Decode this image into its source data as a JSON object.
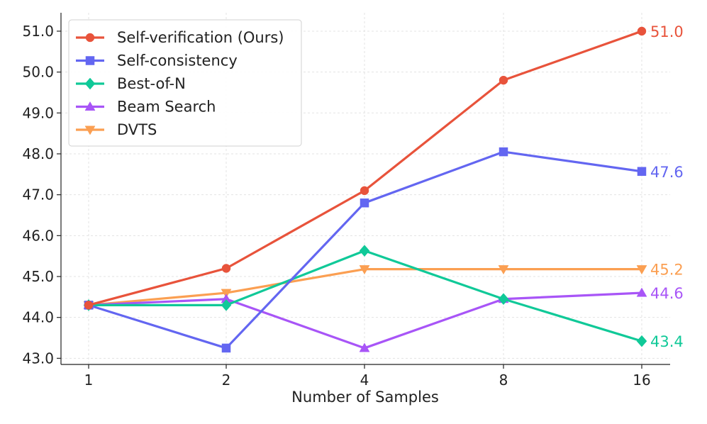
{
  "chart_data": {
    "type": "line",
    "title": "",
    "xlabel": "Number of Samples",
    "ylabel": "",
    "categories": [
      "1",
      "2",
      "4",
      "8",
      "16"
    ],
    "ylim": [
      42.85,
      51.45
    ],
    "yticks": [
      "43.0",
      "44.0",
      "45.0",
      "46.0",
      "47.0",
      "48.0",
      "49.0",
      "50.0",
      "51.0"
    ],
    "ytick_values": [
      43,
      44,
      45,
      46,
      47,
      48,
      49,
      50,
      51
    ],
    "grid": true,
    "legend_position": "top-left",
    "series": [
      {
        "name": "Self-verification (Ours)",
        "color": "#e8533b",
        "marker": "circle",
        "values": [
          44.3,
          45.2,
          47.1,
          49.8,
          51.0
        ],
        "end_label": "51.0"
      },
      {
        "name": "Self-consistency",
        "color": "#6366f1",
        "marker": "square",
        "values": [
          44.3,
          43.25,
          46.8,
          48.05,
          47.57
        ],
        "end_label": "47.6"
      },
      {
        "name": "Best-of-N",
        "color": "#10c998",
        "marker": "diamond",
        "values": [
          44.3,
          44.3,
          45.63,
          44.45,
          43.42
        ],
        "end_label": "43.4"
      },
      {
        "name": "Beam Search",
        "color": "#a855f7",
        "marker": "triangle-up",
        "values": [
          44.3,
          44.45,
          43.25,
          44.45,
          44.6
        ],
        "end_label": "44.6"
      },
      {
        "name": "DVTS",
        "color": "#fb9f52",
        "marker": "triangle-down",
        "values": [
          44.3,
          44.6,
          45.18,
          45.18,
          45.18
        ],
        "end_label": "45.2"
      }
    ]
  }
}
